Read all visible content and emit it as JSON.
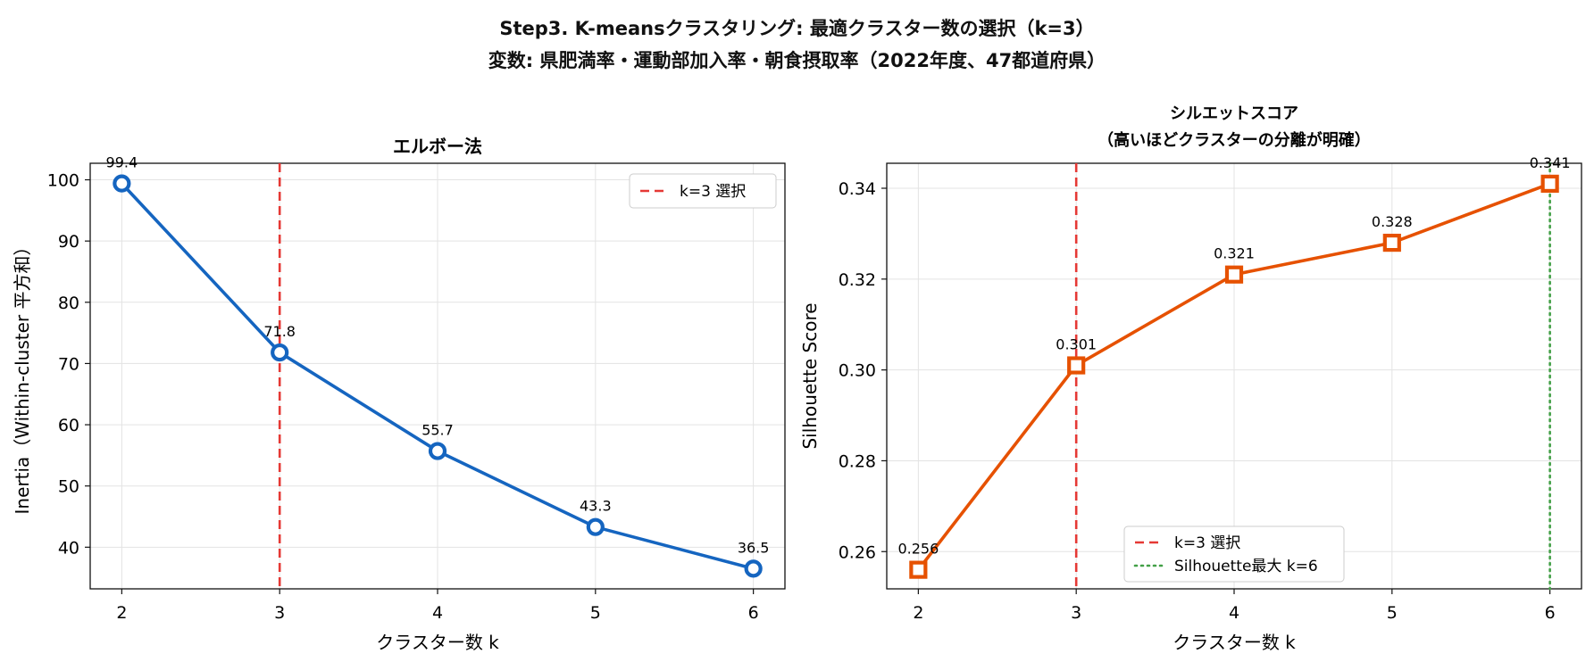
{
  "title_line1": "Step3. K-meansクラスタリング: 最適クラスター数の選択（k=3）",
  "title_line2": "変数: 県肥満率・運動部加入率・朝食摂取率（2022年度、47都道府県）",
  "chart_data": [
    {
      "type": "line",
      "title": "エルボー法",
      "xlabel": "クラスター数 k",
      "ylabel": "Inertia（Within-cluster 平方和）",
      "x": [
        2,
        3,
        4,
        5,
        6
      ],
      "series": [
        {
          "values": [
            99.4,
            71.8,
            55.7,
            43.3,
            36.5
          ],
          "color": "#1565c0",
          "marker": "circle"
        }
      ],
      "data_labels": [
        "99.4",
        "71.8",
        "55.7",
        "43.3",
        "36.5"
      ],
      "xlim": [
        1.8,
        6.2
      ],
      "ylim": [
        33.2,
        102.7
      ],
      "yticks": [
        40,
        50,
        60,
        70,
        80,
        90,
        100
      ],
      "ytick_labels": [
        "40",
        "50",
        "60",
        "70",
        "80",
        "90",
        "100"
      ],
      "xticks": [
        2,
        3,
        4,
        5,
        6
      ],
      "xtick_labels": [
        "2",
        "3",
        "4",
        "5",
        "6"
      ],
      "vlines": [
        {
          "x": 3,
          "color": "#e53935",
          "style": "dashed",
          "label": "k=3 選択"
        }
      ],
      "legend": {
        "position": "upper right",
        "entries": [
          "k=3 選択"
        ]
      },
      "grid": true
    },
    {
      "type": "line",
      "title": "シルエットスコア\n（高いほどクラスターの分離が明確）",
      "title_lines": [
        "シルエットスコア",
        "（高いほどクラスターの分離が明確）"
      ],
      "xlabel": "クラスター数 k",
      "ylabel": "Silhouette Score",
      "x": [
        2,
        3,
        4,
        5,
        6
      ],
      "series": [
        {
          "values": [
            0.256,
            0.301,
            0.321,
            0.328,
            0.341
          ],
          "color": "#e65100",
          "marker": "square"
        }
      ],
      "data_labels": [
        "0.256",
        "0.301",
        "0.321",
        "0.328",
        "0.341"
      ],
      "xlim": [
        1.8,
        6.2
      ],
      "ylim": [
        0.2518,
        0.3455
      ],
      "yticks": [
        0.26,
        0.28,
        0.3,
        0.32,
        0.34
      ],
      "ytick_labels": [
        "0.26",
        "0.28",
        "0.30",
        "0.32",
        "0.34"
      ],
      "xticks": [
        2,
        3,
        4,
        5,
        6
      ],
      "xtick_labels": [
        "2",
        "3",
        "4",
        "5",
        "6"
      ],
      "vlines": [
        {
          "x": 3,
          "color": "#e53935",
          "style": "dashed",
          "label": "k=3 選択"
        },
        {
          "x": 6,
          "color": "#43a047",
          "style": "dotted",
          "label": "Silhouette最大 k=6"
        }
      ],
      "legend": {
        "position": "lower center",
        "entries": [
          "k=3 選択",
          "Silhouette最大 k=6"
        ]
      },
      "grid": true
    }
  ]
}
